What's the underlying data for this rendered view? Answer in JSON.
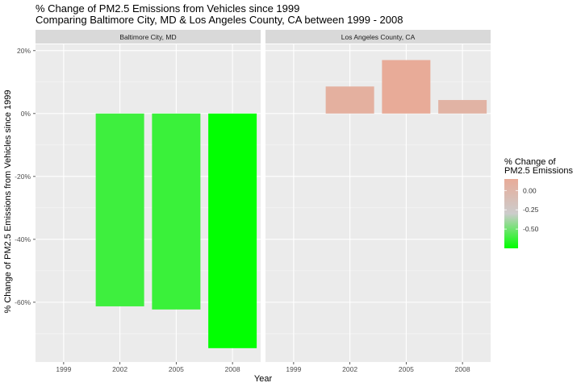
{
  "chart_data": {
    "type": "bar",
    "title": "% Change of PM2.5 Emissions from Vehicles since 1999",
    "subtitle": "Comparing Baltimore City, MD & Los Angeles County, CA between 1999 - 2008",
    "xlabel": "Year",
    "ylabel": "% Change of PM2.5 Emissions from Vehicles since 1999",
    "categories": [
      "1999",
      "2002",
      "2005",
      "2008"
    ],
    "ylim": [
      -0.79,
      0.22
    ],
    "yticks": [
      0.2,
      0,
      -0.2,
      -0.4,
      -0.6
    ],
    "ytick_labels": [
      "20%",
      "0%",
      "-20%",
      "-40%",
      "-60%"
    ],
    "grid": true,
    "panels": [
      {
        "name": "Baltimore City, MD",
        "values": [
          0,
          -0.613,
          -0.623,
          -0.746
        ]
      },
      {
        "name": "Los Angeles County, CA",
        "values": [
          0,
          0.086,
          0.17,
          0.043
        ]
      }
    ],
    "legend": {
      "title_line1": "% Change of",
      "title_line2": "PM2.5 Emissions",
      "placement": "right",
      "range": [
        -0.75,
        0.15
      ],
      "ticks": [
        0.0,
        -0.25,
        -0.5
      ],
      "tick_labels": [
        "0.00",
        "-0.25",
        "-0.50"
      ],
      "color_high": "#e8ab98",
      "color_mid": "#cccccc",
      "color_low": "#00ff00"
    },
    "panel_bg": "#ebebeb",
    "strip_bg": "#d9d9d9"
  }
}
